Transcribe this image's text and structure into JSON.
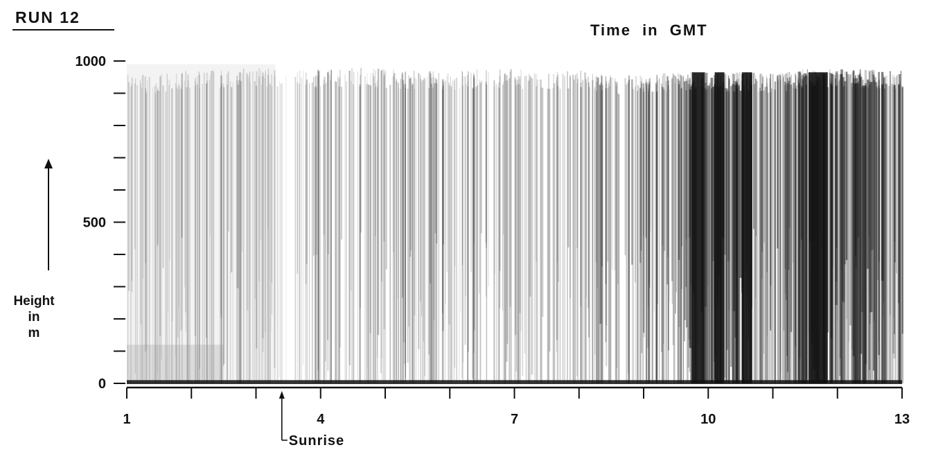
{
  "chart_data": {
    "type": "heatmap",
    "title": "RUN 12",
    "xlabel": "Time in GMT",
    "ylabel": "Height in m",
    "ylabel_lines": [
      "Height",
      "in",
      "m"
    ],
    "x_range": [
      1,
      13
    ],
    "y_range": [
      0,
      1000
    ],
    "x_tick_labels": [
      "1",
      "4",
      "7",
      "10",
      "13"
    ],
    "x_tick_label_values": [
      1,
      4,
      7,
      10,
      13
    ],
    "x_minor_ticks": [
      2,
      3,
      5,
      6,
      8,
      9,
      11,
      12
    ],
    "y_tick_labels": [
      "0",
      "500",
      "1000"
    ],
    "y_tick_label_values": [
      0,
      500,
      1000
    ],
    "y_minor_ticks": [
      100,
      200,
      300,
      400,
      600,
      700,
      800,
      900
    ],
    "annotations": [
      {
        "text": "Sunrise",
        "x": 3.4
      }
    ],
    "colors": {
      "ink": "#111111",
      "echo": "#1a1a1a",
      "paper": "#ffffff"
    },
    "echo_intensity": {
      "description_free_values": true,
      "time": [
        1,
        1.5,
        2,
        2.5,
        3,
        3.5,
        4,
        4.5,
        5,
        5.5,
        6,
        6.5,
        7,
        7.5,
        8,
        8.5,
        9,
        9.5,
        9.8,
        10.1,
        10.4,
        10.7,
        11,
        11.5,
        12,
        12.5,
        13
      ],
      "intensity": [
        0.12,
        0.14,
        0.2,
        0.25,
        0.22,
        0.12,
        0.28,
        0.35,
        0.32,
        0.3,
        0.3,
        0.28,
        0.2,
        0.22,
        0.35,
        0.45,
        0.5,
        0.55,
        0.95,
        0.95,
        0.9,
        0.7,
        0.72,
        0.85,
        0.8,
        0.82,
        0.8
      ],
      "top_height": [
        960,
        960,
        975,
        975,
        980,
        975,
        975,
        980,
        975,
        970,
        970,
        975,
        975,
        970,
        975,
        955,
        960,
        965,
        970,
        960,
        965,
        965,
        960,
        975,
        975,
        975,
        970
      ]
    }
  }
}
